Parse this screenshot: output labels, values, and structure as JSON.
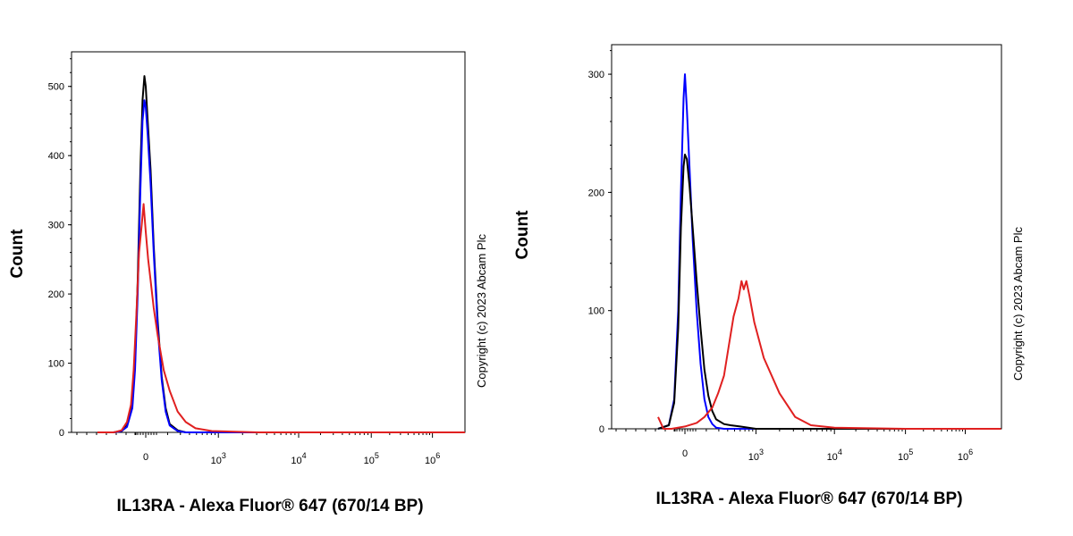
{
  "chart_data": [
    {
      "type": "line",
      "panel": "left",
      "ylabel": "Count",
      "xlabel": "IL13RA - Alexa Fluor® 647 (670/14 BP)",
      "copyright": "Copyright (c) 2023 Abcam Plc",
      "ylim": [
        0,
        550
      ],
      "yticks": [
        0,
        100,
        200,
        300,
        400,
        500
      ],
      "ytick_labels": [
        "0",
        "100",
        "200",
        "300",
        "400",
        "500"
      ],
      "xscale": "biexponential",
      "xticks": [
        {
          "label": "0",
          "base": "0",
          "exp": ""
        },
        {
          "label": "10^3",
          "base": "10",
          "exp": "3"
        },
        {
          "label": "10^4",
          "base": "10",
          "exp": "4"
        },
        {
          "label": "10^5",
          "base": "10",
          "exp": "5"
        },
        {
          "label": "10^6",
          "base": "10",
          "exp": "6"
        }
      ],
      "series": [
        {
          "name": "black",
          "color": "#000000",
          "x": [
            -1.8,
            -1.2,
            -0.9,
            -0.7,
            -0.5,
            -0.4,
            -0.3,
            -0.2,
            -0.12,
            -0.05,
            0.0,
            0.05,
            0.12,
            0.2,
            0.3,
            0.4,
            0.5,
            0.6,
            0.8,
            1.0,
            1.5,
            3.0,
            6.0
          ],
          "y": [
            0,
            0,
            2,
            10,
            40,
            100,
            220,
            380,
            480,
            515,
            500,
            450,
            380,
            270,
            160,
            80,
            35,
            12,
            3,
            0,
            0,
            0,
            0
          ]
        },
        {
          "name": "blue",
          "color": "#0000ff",
          "x": [
            -1.8,
            -1.2,
            -0.9,
            -0.7,
            -0.5,
            -0.4,
            -0.3,
            -0.2,
            -0.12,
            -0.05,
            0.0,
            0.05,
            0.12,
            0.2,
            0.3,
            0.4,
            0.5,
            0.6,
            0.8,
            1.0,
            1.5,
            3.0,
            6.0
          ],
          "y": [
            0,
            0,
            2,
            8,
            35,
            90,
            200,
            350,
            450,
            480,
            470,
            430,
            360,
            260,
            150,
            75,
            30,
            10,
            2,
            0,
            0,
            0,
            0
          ]
        },
        {
          "name": "red",
          "color": "#e02020",
          "x": [
            -1.8,
            -1.2,
            -0.9,
            -0.7,
            -0.55,
            -0.45,
            -0.35,
            -0.25,
            -0.15,
            -0.08,
            0.0,
            0.06,
            0.12,
            0.2,
            0.3,
            0.45,
            0.6,
            0.8,
            1.0,
            1.3,
            1.8,
            2.5,
            3.2,
            4.0,
            5.0,
            6.0
          ],
          "y": [
            0,
            0,
            3,
            15,
            40,
            90,
            170,
            260,
            300,
            330,
            290,
            250,
            220,
            180,
            140,
            90,
            60,
            30,
            15,
            6,
            2,
            0,
            0,
            0,
            0,
            0
          ]
        }
      ]
    },
    {
      "type": "line",
      "panel": "right",
      "ylabel": "Count",
      "xlabel": "IL13RA - Alexa Fluor® 647 (670/14 BP)",
      "copyright": "Copyright (c) 2023 Abcam Plc",
      "ylim": [
        0,
        325
      ],
      "yticks": [
        0,
        100,
        200,
        300
      ],
      "ytick_labels": [
        "0",
        "100",
        "200",
        "300"
      ],
      "xscale": "biexponential",
      "xticks": [
        {
          "label": "0",
          "base": "0",
          "exp": ""
        },
        {
          "label": "10^3",
          "base": "10",
          "exp": "3"
        },
        {
          "label": "10^4",
          "base": "10",
          "exp": "4"
        },
        {
          "label": "10^5",
          "base": "10",
          "exp": "5"
        },
        {
          "label": "10^6",
          "base": "10",
          "exp": "6"
        }
      ],
      "series": [
        {
          "name": "blue",
          "color": "#0000ff",
          "x": [
            -1.0,
            -0.6,
            -0.4,
            -0.25,
            -0.15,
            -0.05,
            0.0,
            0.05,
            0.12,
            0.2,
            0.3,
            0.4,
            0.5,
            0.6,
            0.7,
            0.8,
            1.0,
            1.3,
            2.0,
            6.0
          ],
          "y": [
            0,
            3,
            25,
            100,
            200,
            280,
            300,
            270,
            220,
            160,
            100,
            55,
            25,
            10,
            4,
            1,
            0,
            0,
            0,
            0
          ]
        },
        {
          "name": "black",
          "color": "#000000",
          "x": [
            -1.0,
            -0.6,
            -0.4,
            -0.25,
            -0.15,
            -0.05,
            0.0,
            0.05,
            0.12,
            0.2,
            0.3,
            0.4,
            0.5,
            0.6,
            0.7,
            0.8,
            1.0,
            1.2,
            1.5,
            2.0,
            3.0,
            6.0
          ],
          "y": [
            0,
            3,
            22,
            85,
            170,
            222,
            232,
            228,
            205,
            170,
            125,
            85,
            50,
            28,
            15,
            8,
            4,
            3,
            2,
            0,
            0,
            0
          ]
        },
        {
          "name": "red",
          "color": "#e02020",
          "x": [
            -1.0,
            -0.8,
            -0.5,
            0.0,
            0.3,
            0.5,
            0.7,
            0.85,
            1.0,
            1.15,
            1.3,
            1.45,
            1.55,
            1.62,
            1.7,
            1.8,
            1.95,
            2.1,
            2.3,
            2.5,
            2.7,
            3.0,
            4.0,
            6.0
          ],
          "y": [
            10,
            0,
            0,
            2,
            5,
            10,
            18,
            30,
            45,
            70,
            95,
            110,
            125,
            118,
            125,
            112,
            90,
            60,
            30,
            10,
            3,
            1,
            0,
            0
          ]
        }
      ]
    }
  ]
}
